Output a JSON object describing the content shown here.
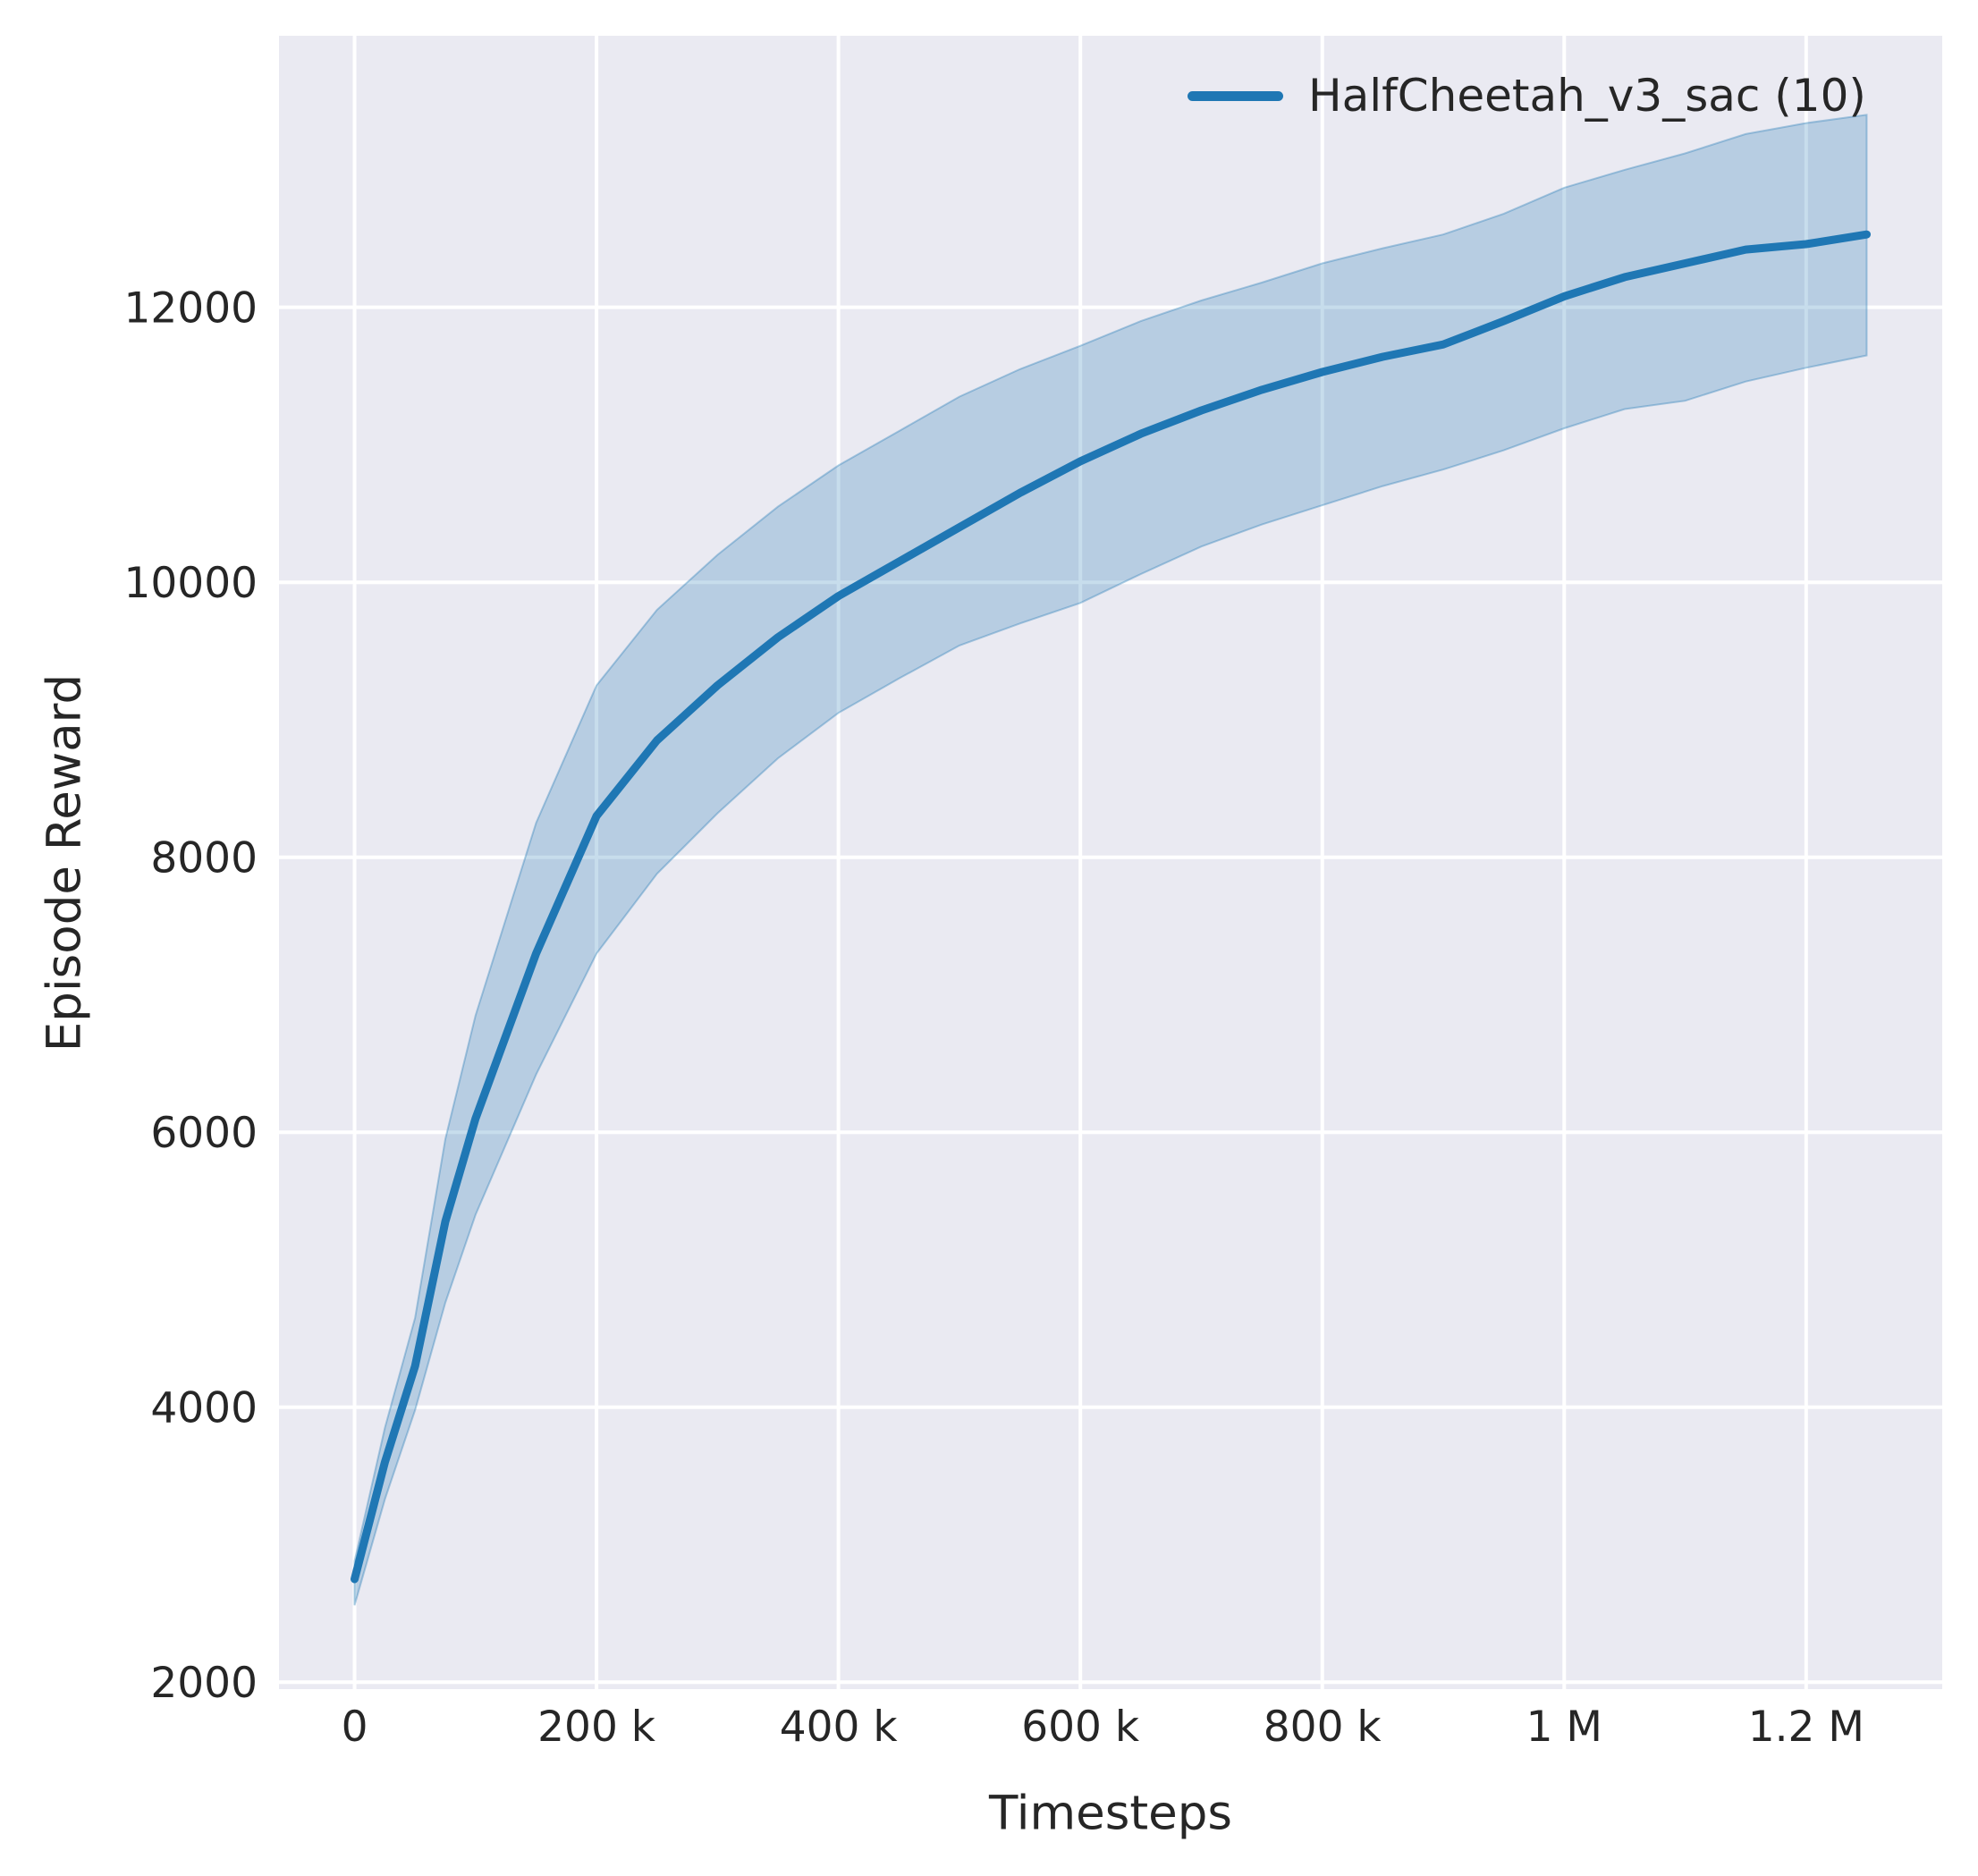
{
  "figure": {
    "background": "#ffffff",
    "axes_background": "#eaeaf2",
    "grid_color": "#ffffff",
    "text_color": "#262626",
    "tick_font_px": 47
  },
  "chart_data": {
    "type": "line",
    "title": "",
    "xlabel": "Timesteps",
    "ylabel": "Episode Reward",
    "grid": true,
    "legend": {
      "position": "upper right",
      "entries": [
        {
          "label": "HalfCheetah_v3_sac (10)",
          "color": "#1f77b4"
        }
      ]
    },
    "xlim": [
      -62500,
      1312500
    ],
    "ylim": [
      1950,
      13975
    ],
    "x_ticks": [
      {
        "value": 0,
        "label": "0"
      },
      {
        "value": 200000,
        "label": "200 k"
      },
      {
        "value": 400000,
        "label": "400 k"
      },
      {
        "value": 600000,
        "label": "600 k"
      },
      {
        "value": 800000,
        "label": "800 k"
      },
      {
        "value": 1000000,
        "label": "1 M"
      },
      {
        "value": 1200000,
        "label": "1.2 M"
      }
    ],
    "y_ticks": [
      {
        "value": 2000,
        "label": "2000"
      },
      {
        "value": 4000,
        "label": "4000"
      },
      {
        "value": 6000,
        "label": "6000"
      },
      {
        "value": 8000,
        "label": "8000"
      },
      {
        "value": 10000,
        "label": "10000"
      },
      {
        "value": 12000,
        "label": "12000"
      }
    ],
    "series": [
      {
        "name": "HalfCheetah_v3_sac (10)",
        "color": "#1f77b4",
        "band_fill": "rgba(31,119,180,0.25)",
        "band_edge": "rgba(31,119,180,0.35)",
        "x": [
          0,
          25000,
          50000,
          75000,
          100000,
          150000,
          200000,
          250000,
          300000,
          350000,
          400000,
          450000,
          500000,
          550000,
          600000,
          650000,
          700000,
          750000,
          800000,
          850000,
          900000,
          950000,
          1000000,
          1050000,
          1100000,
          1150000,
          1200000,
          1250000
        ],
        "mean": [
          2750,
          3600,
          4300,
          5350,
          6100,
          7300,
          8300,
          8850,
          9250,
          9600,
          9900,
          10150,
          10400,
          10650,
          10880,
          11080,
          11250,
          11400,
          11530,
          11640,
          11730,
          11900,
          12080,
          12220,
          12320,
          12420,
          12460,
          12530
        ],
        "upper": [
          2880,
          3850,
          4650,
          5950,
          6850,
          8250,
          9250,
          9800,
          10200,
          10550,
          10850,
          11100,
          11350,
          11550,
          11720,
          11900,
          12050,
          12180,
          12320,
          12430,
          12530,
          12680,
          12870,
          13000,
          13120,
          13260,
          13340,
          13400
        ],
        "lower": [
          2560,
          3330,
          3980,
          4760,
          5400,
          6420,
          7300,
          7880,
          8320,
          8720,
          9050,
          9300,
          9540,
          9700,
          9850,
          10060,
          10260,
          10420,
          10560,
          10700,
          10820,
          10960,
          11120,
          11260,
          11320,
          11460,
          11560,
          11650
        ]
      }
    ]
  }
}
